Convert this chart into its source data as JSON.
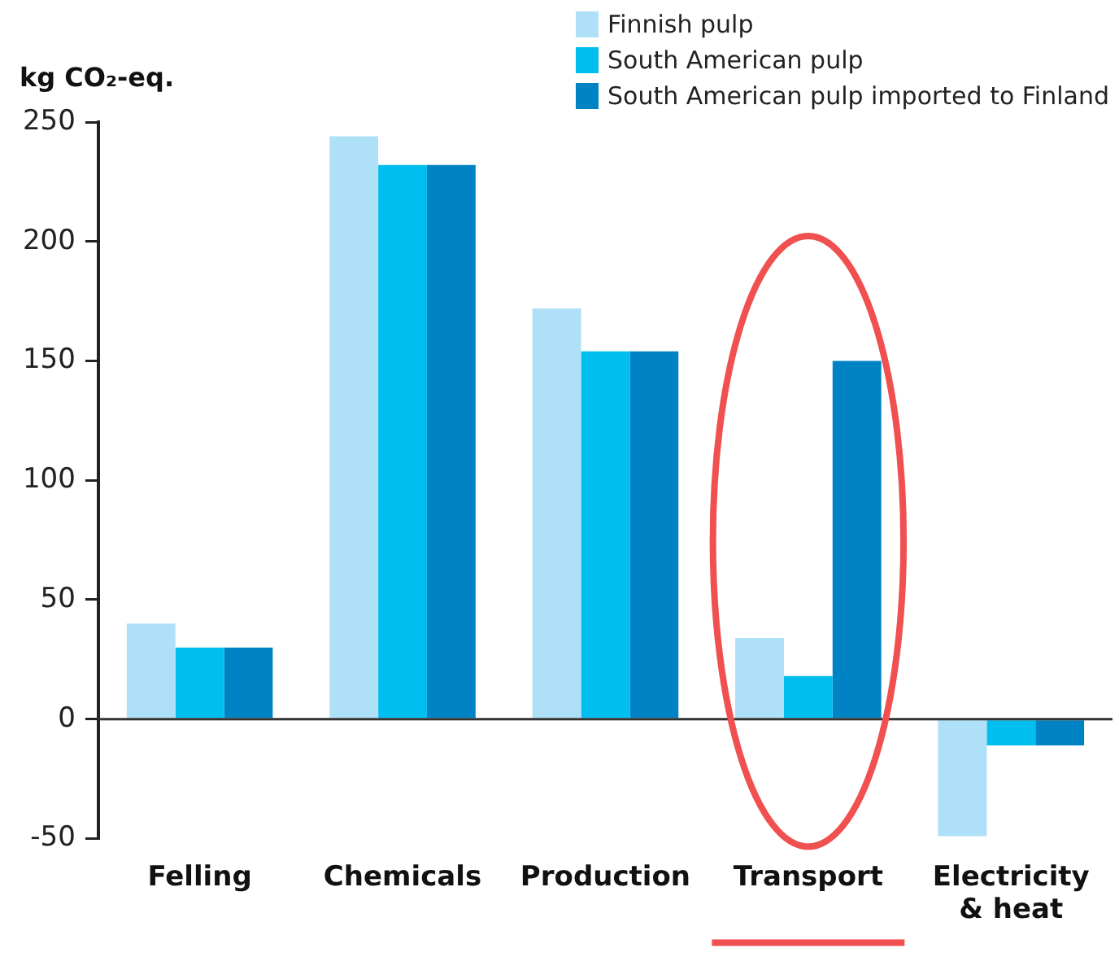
{
  "chart_data": {
    "type": "bar",
    "ylabel": "kg CO₂-eq.",
    "categories": [
      "Felling",
      "Chemicals",
      "Production",
      "Transport",
      "Electricity & heat"
    ],
    "series": [
      {
        "name": "Finnish pulp",
        "color": "#aee0f8",
        "values": [
          40,
          244,
          172,
          34,
          -49
        ]
      },
      {
        "name": "South American pulp",
        "color": "#00bff0",
        "values": [
          30,
          232,
          154,
          18,
          -11
        ]
      },
      {
        "name": "South American pulp imported to Finland",
        "color": "#0083c4",
        "values": [
          30,
          232,
          154,
          150,
          -11
        ]
      }
    ],
    "ylim": [
      -50,
      250
    ],
    "yticks": [
      -50,
      0,
      50,
      100,
      150,
      200,
      250
    ],
    "ref_lines": [
      {
        "axis": "y",
        "value": 0,
        "color": "#333333"
      }
    ],
    "grid": false,
    "legend": "top right"
  }
}
